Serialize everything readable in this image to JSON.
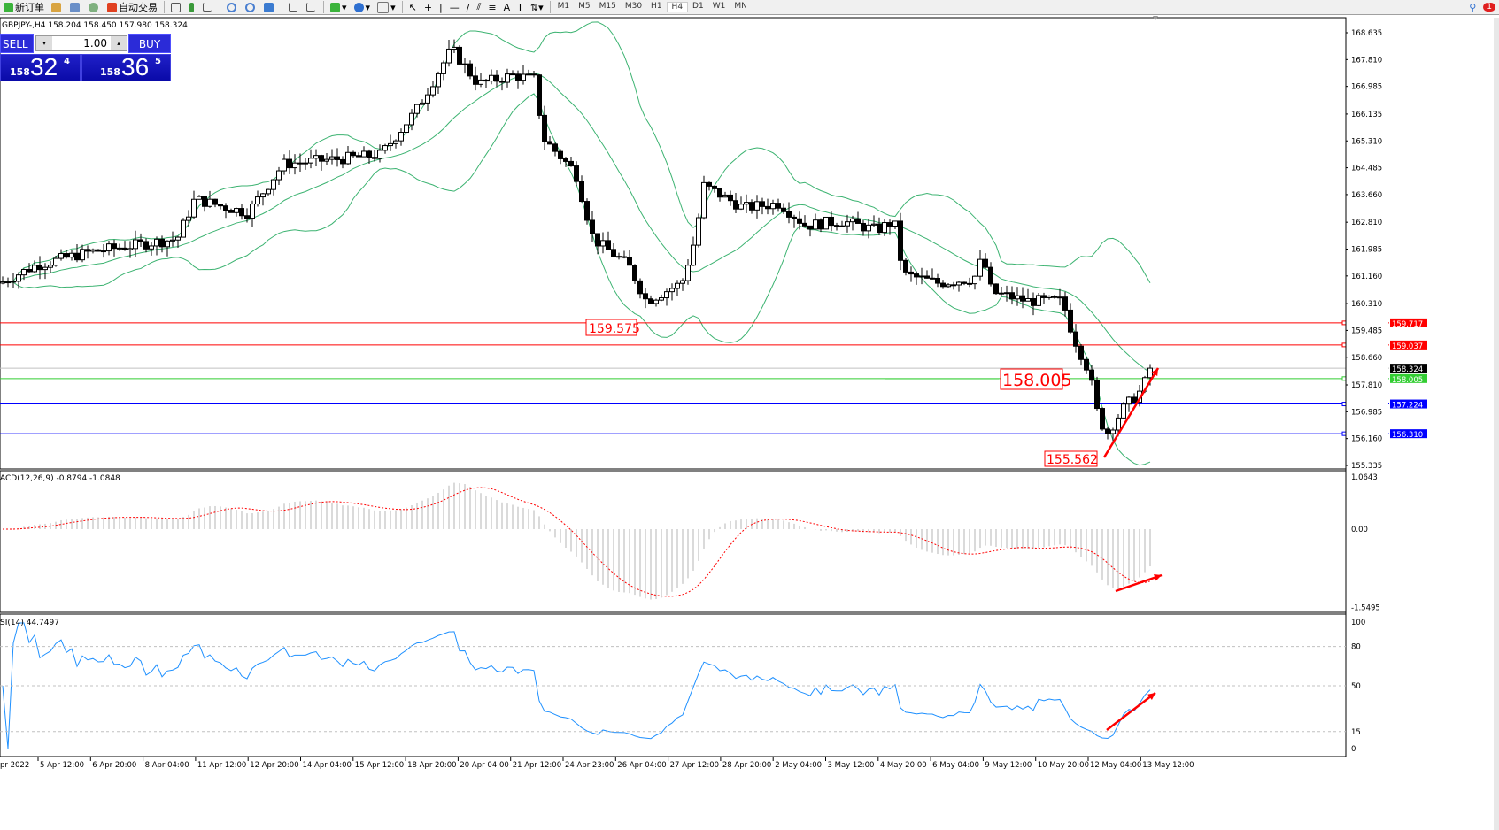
{
  "toolbar": {
    "new_order": "新订单",
    "auto_trading": "自动交易",
    "timeframes": [
      "M1",
      "M5",
      "M15",
      "M30",
      "H1",
      "H4",
      "D1",
      "W1",
      "MN"
    ],
    "active_timeframe": "H4",
    "notification_count": "1"
  },
  "chart": {
    "info": "GBPJPY-,H4  158.204 158.450 157.980 158.324",
    "symbol": "GBPJPY-",
    "timeframe": "H4",
    "ohlc": {
      "open": 158.204,
      "high": 158.45,
      "low": 157.98,
      "close": 158.324
    }
  },
  "trade_panel": {
    "sell_label": "SELL",
    "buy_label": "BUY",
    "lot": "1.00",
    "sell_prefix": "158",
    "sell_big": "32",
    "sell_sup": "4",
    "buy_prefix": "158",
    "buy_big": "36",
    "buy_sup": "5"
  },
  "price_axis": [
    "168.635",
    "167.810",
    "166.985",
    "166.135",
    "165.310",
    "164.485",
    "163.660",
    "162.810",
    "161.985",
    "161.160",
    "160.310",
    "159.485",
    "158.660",
    "157.810",
    "156.985",
    "156.160",
    "155.335"
  ],
  "levels": [
    {
      "price": "159.717",
      "color": "#ff0000"
    },
    {
      "price": "159.037",
      "color": "#ff0000"
    },
    {
      "price": "158.324",
      "color": "#000000",
      "line": "#c0c0c0"
    },
    {
      "price": "158.005",
      "color": "#32cd32"
    },
    {
      "price": "157.224",
      "color": "#0000ff"
    },
    {
      "price": "156.310",
      "color": "#0000ff"
    }
  ],
  "annotations": {
    "high_label": "159.575",
    "mid_label": "158.005",
    "low_label": "155.562",
    "arrow_color": "#ff0000"
  },
  "macd": {
    "label": "ACD(12,26,9) -0.8794 -1.0848",
    "axis": [
      "1.0643",
      "0.00",
      "-1.5495"
    ]
  },
  "rsi": {
    "label": "SI(14) 44.7497",
    "axis": [
      "100",
      "80",
      "50",
      "15",
      "0"
    ]
  },
  "time_axis": [
    "pr 2022",
    "5 Apr 12:00",
    "6 Apr 20:00",
    "8 Apr 04:00",
    "11 Apr 12:00",
    "12 Apr 20:00",
    "14 Apr 04:00",
    "15 Apr 12:00",
    "18 Apr 20:00",
    "20 Apr 04:00",
    "21 Apr 12:00",
    "24 Apr 23:00",
    "26 Apr 04:00",
    "27 Apr 12:00",
    "28 Apr 20:00",
    "2 May 04:00",
    "3 May 12:00",
    "4 May 20:00",
    "6 May 04:00",
    "9 May 12:00",
    "10 May 20:00",
    "12 May 04:00",
    "13 May 12:00"
  ],
  "colors": {
    "bollinger": "#3cb371",
    "macd_hist": "#c0c0c0",
    "macd_signal": "#ff0000",
    "rsi_line": "#1e90ff",
    "trade_panel": "#1a1acc"
  }
}
